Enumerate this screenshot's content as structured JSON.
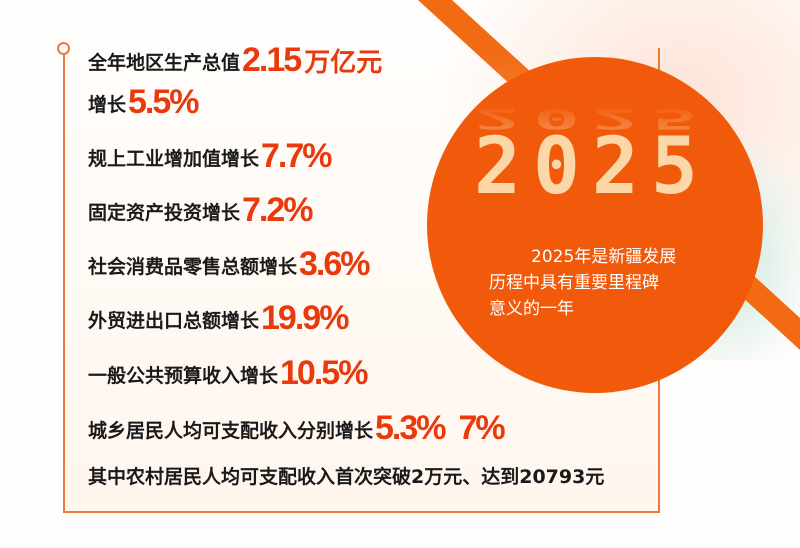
{
  "accent_color": "#f15a0b",
  "number_color": "#e83a0c",
  "year": "2025",
  "year_caption": [
    "2025年是新疆发展",
    "历程中具有重要里程碑",
    "意义的一年"
  ],
  "stats": [
    {
      "label": "全年地区生产总值",
      "value": "2.15",
      "unit": "万亿元"
    },
    {
      "label": "增长",
      "value": "5.5%"
    },
    {
      "label": "规上工业增加值增长",
      "value": "7.7%"
    },
    {
      "label": "固定资产投资增长",
      "value": "7.2%"
    },
    {
      "label": "社会消费品零售总额增长",
      "value": "3.6%"
    },
    {
      "label": "外贸进出口总额增长",
      "value": "19.9%"
    },
    {
      "label": "一般公共预算收入增长",
      "value": "10.5%"
    },
    {
      "label": "城乡居民人均可支配收入分别增长",
      "value": "5.3%",
      "value2": "7%"
    }
  ],
  "footnote": "其中农村居民人均可支配收入首次突破2万元、达到20793元"
}
